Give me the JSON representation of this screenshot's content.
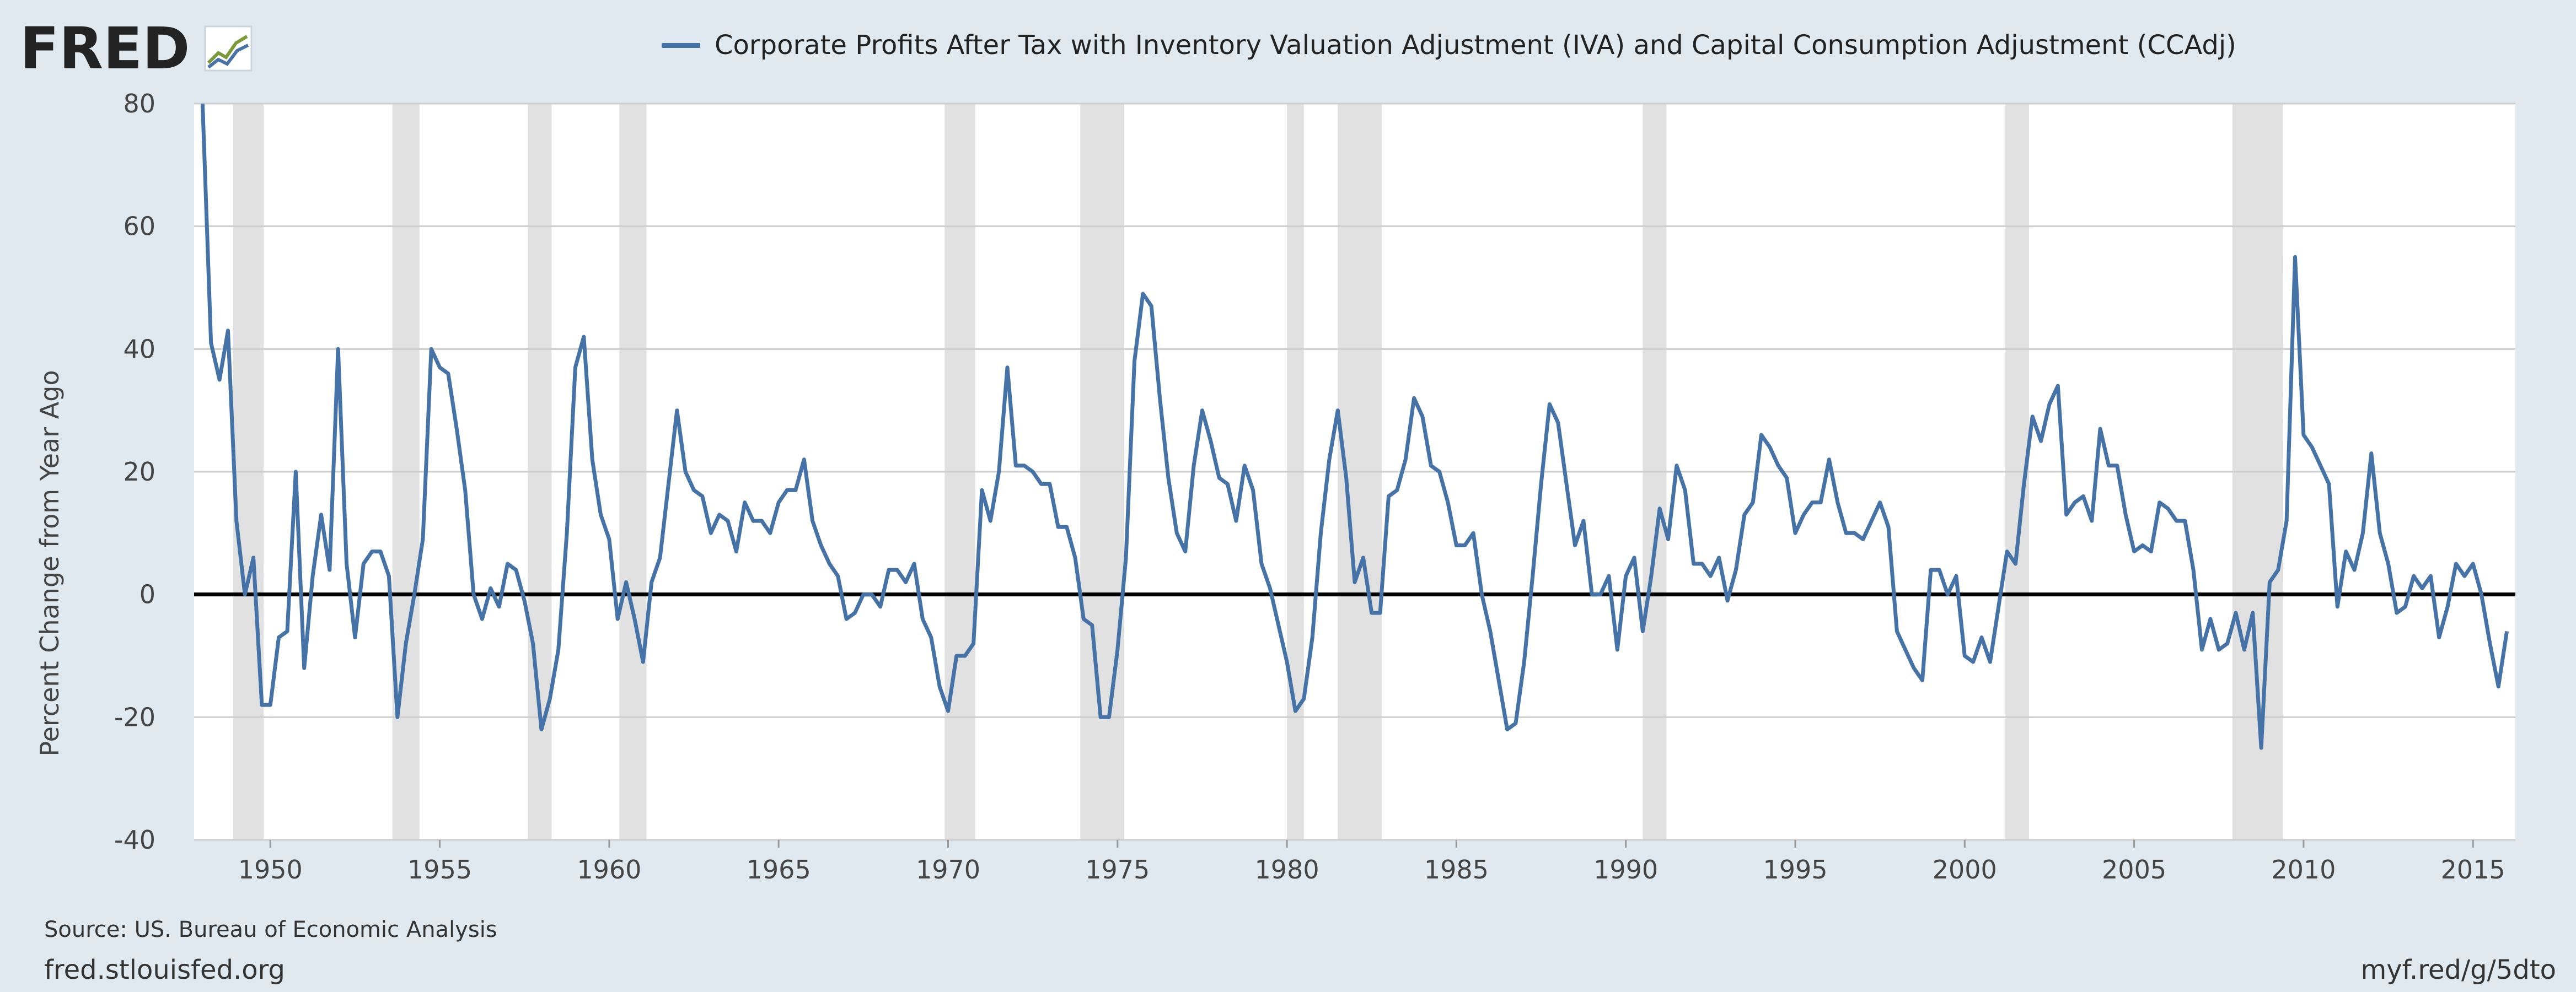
{
  "header": {
    "logo_text": "FRED",
    "legend_label": "Corporate Profits After Tax with Inventory Valuation Adjustment (IVA) and Capital Consumption Adjustment (CCAdj)"
  },
  "footer": {
    "source": "Source: US. Bureau of Economic Analysis",
    "site": "fred.stlouisfed.org",
    "short_url": "myf.red/g/5dto"
  },
  "colors": {
    "series": "#4572a7",
    "recession": "#e1e1e1",
    "plot_bg": "#ffffff",
    "page_bg": "#e1e9f0",
    "logo_dark": "#232323",
    "logo_accent": "#c8102e"
  },
  "chart_data": {
    "type": "line",
    "title": "",
    "xlabel": "",
    "ylabel": "Percent Change from Year Ago",
    "xlim": [
      1947.75,
      2016.25
    ],
    "ylim": [
      -40,
      80
    ],
    "yticks": [
      -40,
      -20,
      0,
      20,
      40,
      60,
      80
    ],
    "xticks": [
      1950,
      1955,
      1960,
      1965,
      1970,
      1975,
      1980,
      1985,
      1990,
      1995,
      2000,
      2005,
      2010,
      2015
    ],
    "grid": true,
    "zero_line": true,
    "legend_position": "top",
    "recessions": [
      [
        1948.9,
        1949.8
      ],
      [
        1953.6,
        1954.4
      ],
      [
        1957.6,
        1958.3
      ],
      [
        1960.3,
        1961.1
      ],
      [
        1969.9,
        1970.8
      ],
      [
        1973.9,
        1975.2
      ],
      [
        1980.0,
        1980.5
      ],
      [
        1981.5,
        1982.8
      ],
      [
        1990.5,
        1991.2
      ],
      [
        2001.2,
        2001.9
      ],
      [
        2007.9,
        2009.4
      ]
    ],
    "series": [
      {
        "name": "Corporate Profits After Tax with Inventory Valuation Adjustment (IVA) and Capital Consumption Adjustment (CCAdj)",
        "points": [
          [
            1948.0,
            80
          ],
          [
            1948.25,
            41
          ],
          [
            1948.5,
            35
          ],
          [
            1948.75,
            43
          ],
          [
            1949.0,
            12
          ],
          [
            1949.25,
            0
          ],
          [
            1949.5,
            6
          ],
          [
            1949.75,
            -18
          ],
          [
            1950.0,
            -18
          ],
          [
            1950.25,
            -7
          ],
          [
            1950.5,
            -6
          ],
          [
            1950.75,
            20
          ],
          [
            1951.0,
            -12
          ],
          [
            1951.25,
            3
          ],
          [
            1951.5,
            13
          ],
          [
            1951.75,
            4
          ],
          [
            1952.0,
            40
          ],
          [
            1952.25,
            5
          ],
          [
            1952.5,
            -7
          ],
          [
            1952.75,
            5
          ],
          [
            1953.0,
            7
          ],
          [
            1953.25,
            7
          ],
          [
            1953.5,
            3
          ],
          [
            1953.75,
            -20
          ],
          [
            1954.0,
            -8
          ],
          [
            1954.25,
            0
          ],
          [
            1954.5,
            9
          ],
          [
            1954.75,
            40
          ],
          [
            1955.0,
            37
          ],
          [
            1955.25,
            36
          ],
          [
            1955.5,
            27
          ],
          [
            1955.75,
            17
          ],
          [
            1956.0,
            0
          ],
          [
            1956.25,
            -4
          ],
          [
            1956.5,
            1
          ],
          [
            1956.75,
            -2
          ],
          [
            1957.0,
            5
          ],
          [
            1957.25,
            4
          ],
          [
            1957.5,
            -1
          ],
          [
            1957.75,
            -8
          ],
          [
            1958.0,
            -22
          ],
          [
            1958.25,
            -17
          ],
          [
            1958.5,
            -9
          ],
          [
            1958.75,
            10
          ],
          [
            1959.0,
            37
          ],
          [
            1959.25,
            42
          ],
          [
            1959.5,
            22
          ],
          [
            1959.75,
            13
          ],
          [
            1960.0,
            9
          ],
          [
            1960.25,
            -4
          ],
          [
            1960.5,
            2
          ],
          [
            1960.75,
            -4
          ],
          [
            1961.0,
            -11
          ],
          [
            1961.25,
            2
          ],
          [
            1961.5,
            6
          ],
          [
            1961.75,
            18
          ],
          [
            1962.0,
            30
          ],
          [
            1962.25,
            20
          ],
          [
            1962.5,
            17
          ],
          [
            1962.75,
            16
          ],
          [
            1963.0,
            10
          ],
          [
            1963.25,
            13
          ],
          [
            1963.5,
            12
          ],
          [
            1963.75,
            7
          ],
          [
            1964.0,
            15
          ],
          [
            1964.25,
            12
          ],
          [
            1964.5,
            12
          ],
          [
            1964.75,
            10
          ],
          [
            1965.0,
            15
          ],
          [
            1965.25,
            17
          ],
          [
            1965.5,
            17
          ],
          [
            1965.75,
            22
          ],
          [
            1966.0,
            12
          ],
          [
            1966.25,
            8
          ],
          [
            1966.5,
            5
          ],
          [
            1966.75,
            3
          ],
          [
            1967.0,
            -4
          ],
          [
            1967.25,
            -3
          ],
          [
            1967.5,
            0
          ],
          [
            1967.75,
            0
          ],
          [
            1968.0,
            -2
          ],
          [
            1968.25,
            4
          ],
          [
            1968.5,
            4
          ],
          [
            1968.75,
            2
          ],
          [
            1969.0,
            5
          ],
          [
            1969.25,
            -4
          ],
          [
            1969.5,
            -7
          ],
          [
            1969.75,
            -15
          ],
          [
            1970.0,
            -19
          ],
          [
            1970.25,
            -10
          ],
          [
            1970.5,
            -10
          ],
          [
            1970.75,
            -8
          ],
          [
            1971.0,
            17
          ],
          [
            1971.25,
            12
          ],
          [
            1971.5,
            20
          ],
          [
            1971.75,
            37
          ],
          [
            1972.0,
            21
          ],
          [
            1972.25,
            21
          ],
          [
            1972.5,
            20
          ],
          [
            1972.75,
            18
          ],
          [
            1973.0,
            18
          ],
          [
            1973.25,
            11
          ],
          [
            1973.5,
            11
          ],
          [
            1973.75,
            6
          ],
          [
            1974.0,
            -4
          ],
          [
            1974.25,
            -5
          ],
          [
            1974.5,
            -20
          ],
          [
            1974.75,
            -20
          ],
          [
            1975.0,
            -9
          ],
          [
            1975.25,
            6
          ],
          [
            1975.5,
            38
          ],
          [
            1975.75,
            49
          ],
          [
            1976.0,
            47
          ],
          [
            1976.25,
            32
          ],
          [
            1976.5,
            19
          ],
          [
            1976.75,
            10
          ],
          [
            1977.0,
            7
          ],
          [
            1977.25,
            21
          ],
          [
            1977.5,
            30
          ],
          [
            1977.75,
            25
          ],
          [
            1978.0,
            19
          ],
          [
            1978.25,
            18
          ],
          [
            1978.5,
            12
          ],
          [
            1978.75,
            21
          ],
          [
            1979.0,
            17
          ],
          [
            1979.25,
            5
          ],
          [
            1979.5,
            1
          ],
          [
            1979.75,
            -5
          ],
          [
            1980.0,
            -11
          ],
          [
            1980.25,
            -19
          ],
          [
            1980.5,
            -17
          ],
          [
            1980.75,
            -7
          ],
          [
            1981.0,
            10
          ],
          [
            1981.25,
            22
          ],
          [
            1981.5,
            30
          ],
          [
            1981.75,
            19
          ],
          [
            1982.0,
            2
          ],
          [
            1982.25,
            6
          ],
          [
            1982.5,
            -3
          ],
          [
            1982.75,
            -3
          ],
          [
            1983.0,
            16
          ],
          [
            1983.25,
            17
          ],
          [
            1983.5,
            22
          ],
          [
            1983.75,
            32
          ],
          [
            1984.0,
            29
          ],
          [
            1984.25,
            21
          ],
          [
            1984.5,
            20
          ],
          [
            1984.75,
            15
          ],
          [
            1985.0,
            8
          ],
          [
            1985.25,
            8
          ],
          [
            1985.5,
            10
          ],
          [
            1985.75,
            0
          ],
          [
            1986.0,
            -6
          ],
          [
            1986.25,
            -14
          ],
          [
            1986.5,
            -22
          ],
          [
            1986.75,
            -21
          ],
          [
            1987.0,
            -11
          ],
          [
            1987.25,
            3
          ],
          [
            1987.5,
            18
          ],
          [
            1987.75,
            31
          ],
          [
            1988.0,
            28
          ],
          [
            1988.25,
            18
          ],
          [
            1988.5,
            8
          ],
          [
            1988.75,
            12
          ],
          [
            1989.0,
            0
          ],
          [
            1989.25,
            0
          ],
          [
            1989.5,
            3
          ],
          [
            1989.75,
            -9
          ],
          [
            1990.0,
            3
          ],
          [
            1990.25,
            6
          ],
          [
            1990.5,
            -6
          ],
          [
            1990.75,
            3
          ],
          [
            1991.0,
            14
          ],
          [
            1991.25,
            9
          ],
          [
            1991.5,
            21
          ],
          [
            1991.75,
            17
          ],
          [
            1992.0,
            5
          ],
          [
            1992.25,
            5
          ],
          [
            1992.5,
            3
          ],
          [
            1992.75,
            6
          ],
          [
            1993.0,
            -1
          ],
          [
            1993.25,
            4
          ],
          [
            1993.5,
            13
          ],
          [
            1993.75,
            15
          ],
          [
            1994.0,
            26
          ],
          [
            1994.25,
            24
          ],
          [
            1994.5,
            21
          ],
          [
            1994.75,
            19
          ],
          [
            1995.0,
            10
          ],
          [
            1995.25,
            13
          ],
          [
            1995.5,
            15
          ],
          [
            1995.75,
            15
          ],
          [
            1996.0,
            22
          ],
          [
            1996.25,
            15
          ],
          [
            1996.5,
            10
          ],
          [
            1996.75,
            10
          ],
          [
            1997.0,
            9
          ],
          [
            1997.25,
            12
          ],
          [
            1997.5,
            15
          ],
          [
            1997.75,
            11
          ],
          [
            1998.0,
            -6
          ],
          [
            1998.25,
            -9
          ],
          [
            1998.5,
            -12
          ],
          [
            1998.75,
            -14
          ],
          [
            1999.0,
            4
          ],
          [
            1999.25,
            4
          ],
          [
            1999.5,
            0
          ],
          [
            1999.75,
            3
          ],
          [
            2000.0,
            -10
          ],
          [
            2000.25,
            -11
          ],
          [
            2000.5,
            -7
          ],
          [
            2000.75,
            -11
          ],
          [
            2001.0,
            -2
          ],
          [
            2001.25,
            7
          ],
          [
            2001.5,
            5
          ],
          [
            2001.75,
            18
          ],
          [
            2002.0,
            29
          ],
          [
            2002.25,
            25
          ],
          [
            2002.5,
            31
          ],
          [
            2002.75,
            34
          ],
          [
            2003.0,
            13
          ],
          [
            2003.25,
            15
          ],
          [
            2003.5,
            16
          ],
          [
            2003.75,
            12
          ],
          [
            2004.0,
            27
          ],
          [
            2004.25,
            21
          ],
          [
            2004.5,
            21
          ],
          [
            2004.75,
            13
          ],
          [
            2005.0,
            7
          ],
          [
            2005.25,
            8
          ],
          [
            2005.5,
            7
          ],
          [
            2005.75,
            15
          ],
          [
            2006.0,
            14
          ],
          [
            2006.25,
            12
          ],
          [
            2006.5,
            12
          ],
          [
            2006.75,
            4
          ],
          [
            2007.0,
            -9
          ],
          [
            2007.25,
            -4
          ],
          [
            2007.5,
            -9
          ],
          [
            2007.75,
            -8
          ],
          [
            2008.0,
            -3
          ],
          [
            2008.25,
            -9
          ],
          [
            2008.5,
            -3
          ],
          [
            2008.75,
            -25
          ],
          [
            2009.0,
            2
          ],
          [
            2009.25,
            4
          ],
          [
            2009.5,
            12
          ],
          [
            2009.75,
            55
          ],
          [
            2010.0,
            26
          ],
          [
            2010.25,
            24
          ],
          [
            2010.5,
            21
          ],
          [
            2010.75,
            18
          ],
          [
            2011.0,
            -2
          ],
          [
            2011.25,
            7
          ],
          [
            2011.5,
            4
          ],
          [
            2011.75,
            10
          ],
          [
            2012.0,
            23
          ],
          [
            2012.25,
            10
          ],
          [
            2012.5,
            5
          ],
          [
            2012.75,
            -3
          ],
          [
            2013.0,
            -2
          ],
          [
            2013.25,
            3
          ],
          [
            2013.5,
            1
          ],
          [
            2013.75,
            3
          ],
          [
            2014.0,
            -7
          ],
          [
            2014.25,
            -2
          ],
          [
            2014.5,
            5
          ],
          [
            2014.75,
            3
          ],
          [
            2015.0,
            5
          ],
          [
            2015.25,
            0
          ],
          [
            2015.5,
            -8
          ],
          [
            2015.75,
            -15
          ],
          [
            2016.0,
            -6
          ]
        ]
      }
    ]
  }
}
